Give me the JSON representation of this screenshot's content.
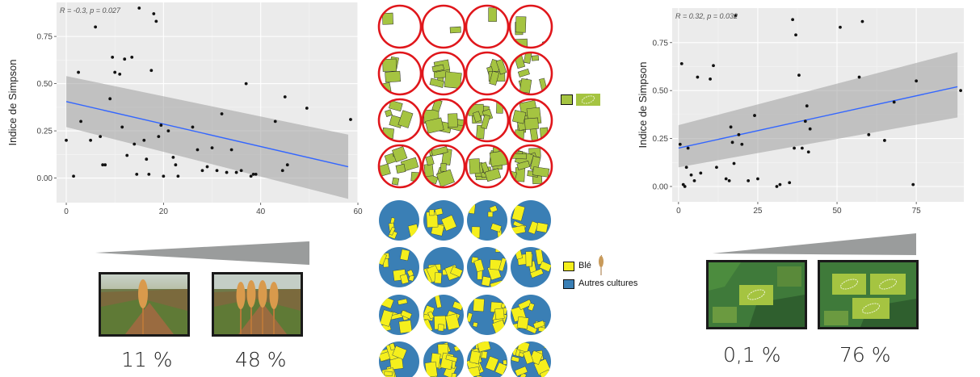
{
  "chart_data": [
    {
      "type": "scatter",
      "ylabel": "Indice de Simpson",
      "xlabel": "",
      "annotation": "R = -0.3, p = 0.027",
      "xlim": [
        -2,
        60
      ],
      "ylim": [
        -0.13,
        0.93
      ],
      "xticks": [
        0,
        20,
        40,
        60
      ],
      "yticks": [
        0.0,
        0.25,
        0.5,
        0.75
      ],
      "ytick_labels": [
        "0.00",
        "0.25",
        "0.50",
        "0.75"
      ],
      "grid": true,
      "regression": {
        "x": [
          0,
          58
        ],
        "y": [
          0.405,
          0.06
        ],
        "ci_upper": [
          0.54,
          0.23
        ],
        "ci_lower": [
          0.27,
          -0.11
        ]
      },
      "points": [
        [
          0,
          0.2
        ],
        [
          1.5,
          0.01
        ],
        [
          2.5,
          0.56
        ],
        [
          3,
          0.3
        ],
        [
          5,
          0.2
        ],
        [
          6,
          0.8
        ],
        [
          7,
          0.22
        ],
        [
          7.5,
          0.07
        ],
        [
          8,
          0.07
        ],
        [
          9,
          0.42
        ],
        [
          9.5,
          0.64
        ],
        [
          10,
          0.56
        ],
        [
          11,
          0.55
        ],
        [
          11.5,
          0.27
        ],
        [
          12,
          0.63
        ],
        [
          12.5,
          0.12
        ],
        [
          13.5,
          0.64
        ],
        [
          14,
          0.18
        ],
        [
          14.5,
          0.02
        ],
        [
          15,
          0.9
        ],
        [
          16,
          0.2
        ],
        [
          16.5,
          0.1
        ],
        [
          17,
          0.02
        ],
        [
          17.5,
          0.57
        ],
        [
          18,
          0.87
        ],
        [
          18.5,
          0.83
        ],
        [
          19,
          0.22
        ],
        [
          19.5,
          0.28
        ],
        [
          20,
          0.01
        ],
        [
          21,
          0.25
        ],
        [
          22,
          0.11
        ],
        [
          22.5,
          0.07
        ],
        [
          23,
          0.01
        ],
        [
          26,
          0.27
        ],
        [
          27,
          0.15
        ],
        [
          28,
          0.04
        ],
        [
          29,
          0.06
        ],
        [
          30,
          0.16
        ],
        [
          31,
          0.04
        ],
        [
          32,
          0.34
        ],
        [
          33,
          0.03
        ],
        [
          34,
          0.15
        ],
        [
          35,
          0.03
        ],
        [
          36,
          0.04
        ],
        [
          37,
          0.5
        ],
        [
          38,
          0.01
        ],
        [
          38.5,
          0.02
        ],
        [
          39,
          0.02
        ],
        [
          43,
          0.3
        ],
        [
          45,
          0.43
        ],
        [
          45.5,
          0.07
        ],
        [
          44.5,
          0.04
        ],
        [
          49.5,
          0.37
        ],
        [
          58.5,
          0.31
        ]
      ]
    },
    {
      "type": "scatter",
      "ylabel": "Indice de Simpson",
      "xlabel": "",
      "annotation": "R = 0.32, p = 0.032",
      "xlim": [
        -2,
        90
      ],
      "ylim": [
        -0.08,
        0.93
      ],
      "xticks": [
        0,
        25,
        50,
        75
      ],
      "yticks": [
        0.0,
        0.25,
        0.5,
        0.75
      ],
      "ytick_labels": [
        "0.00",
        "0.25",
        "0.50",
        "0.75"
      ],
      "grid": true,
      "regression": {
        "x": [
          0,
          88
        ],
        "y": [
          0.2,
          0.52
        ],
        "ci_upper": [
          0.32,
          0.7
        ],
        "ci_lower": [
          0.1,
          0.36
        ]
      },
      "points": [
        [
          0.5,
          0.22
        ],
        [
          1,
          0.64
        ],
        [
          1.5,
          0.01
        ],
        [
          2,
          0.0
        ],
        [
          2.5,
          0.1
        ],
        [
          3,
          0.2
        ],
        [
          4,
          0.06
        ],
        [
          5,
          0.03
        ],
        [
          6,
          0.57
        ],
        [
          7,
          0.07
        ],
        [
          10,
          0.56
        ],
        [
          11,
          0.63
        ],
        [
          12,
          0.1
        ],
        [
          15,
          0.04
        ],
        [
          16,
          0.03
        ],
        [
          16.5,
          0.31
        ],
        [
          17,
          0.23
        ],
        [
          17.5,
          0.12
        ],
        [
          18,
          0.89
        ],
        [
          19,
          0.27
        ],
        [
          20,
          0.22
        ],
        [
          22,
          0.03
        ],
        [
          24,
          0.37
        ],
        [
          25,
          0.04
        ],
        [
          31,
          0.0
        ],
        [
          32,
          0.01
        ],
        [
          35,
          0.02
        ],
        [
          36,
          0.87
        ],
        [
          36.5,
          0.2
        ],
        [
          37,
          0.79
        ],
        [
          38,
          0.58
        ],
        [
          39,
          0.2
        ],
        [
          40,
          0.34
        ],
        [
          40.5,
          0.42
        ],
        [
          41,
          0.18
        ],
        [
          41.5,
          0.3
        ],
        [
          51,
          0.83
        ],
        [
          57,
          0.57
        ],
        [
          58,
          0.86
        ],
        [
          60,
          0.27
        ],
        [
          65,
          0.24
        ],
        [
          68,
          0.44
        ],
        [
          74,
          0.01
        ],
        [
          75,
          0.55
        ],
        [
          89,
          0.5
        ]
      ]
    }
  ],
  "left_scale": {
    "labels": [
      "11 %",
      "48 %"
    ]
  },
  "right_scale": {
    "labels": [
      "0,1 %",
      "76 %"
    ]
  },
  "legend_top": {
    "items": [
      "",
      ""
    ]
  },
  "legend_bottom": {
    "items": [
      "Blé",
      "Autres cultures"
    ]
  },
  "colors": {
    "panel_bg": "#ebebeb",
    "grid": "#ffffff",
    "regression": "#3366ff",
    "ci_band": "#9e9e9e",
    "point": "#111111",
    "circle_border": "#e0161b",
    "field_green": "#a5c441",
    "wheat_yellow": "#f5ef1c",
    "other_blue": "#3a7fb5",
    "gradient_bar": "#9a9c9c"
  }
}
